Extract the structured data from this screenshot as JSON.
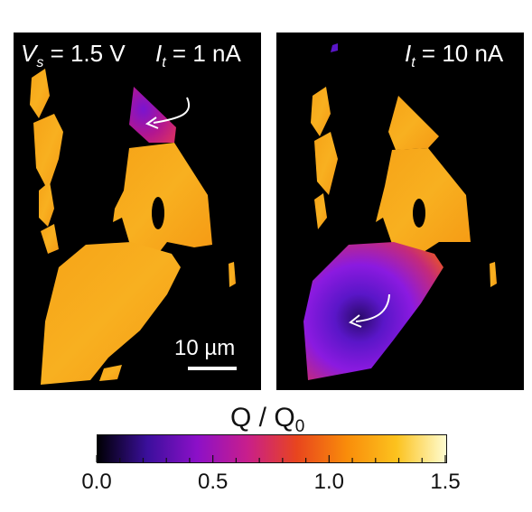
{
  "left_panel": {
    "voltage_label": "V",
    "voltage_sub": "s",
    "voltage_value": " = 1.5 V",
    "current_label": "I",
    "current_sub": "t",
    "current_value": " = 1 nA",
    "scalebar_label": "10 µm"
  },
  "right_panel": {
    "current_label": "I",
    "current_sub": "t",
    "current_value": " = 10 nA"
  },
  "colorbar": {
    "title": "Q / Q",
    "title_sub": "0",
    "min": 0.0,
    "max": 1.5,
    "ticks": [
      "0.0",
      "0.5",
      "1.0",
      "1.5"
    ],
    "colormap": "plasma-like",
    "colors": [
      "#000004",
      "#3b0f9c",
      "#8c10c8",
      "#c81e8c",
      "#e8451e",
      "#f98c0a",
      "#fcc21e",
      "#fefcd0"
    ]
  }
}
